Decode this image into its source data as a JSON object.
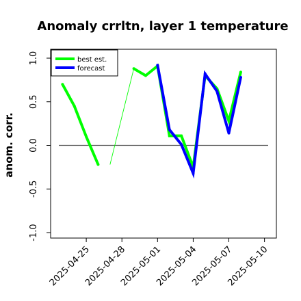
{
  "chart_data": {
    "type": "line",
    "title": "Anomaly crrltn, layer 1 temperature",
    "xlabel": "",
    "ylabel": "anom. corr.",
    "ylim": [
      -1.0,
      1.0
    ],
    "x_range": [
      "2025-04-22",
      "2025-05-11"
    ],
    "y_ticks": [
      "1.0",
      "0.5",
      "0.0",
      "-0.5",
      "-1.0"
    ],
    "y_tick_values": [
      1.0,
      0.5,
      0.0,
      -0.5,
      -1.0
    ],
    "x_ticks": [
      "2025-04-25",
      "2025-04-28",
      "2025-05-01",
      "2025-05-04",
      "2025-05-07",
      "2025-05-10"
    ],
    "highlight_tick": "2025-05-01",
    "highlight_color": "#228b22",
    "reference_line": 0.0,
    "legend_position": "top-left",
    "legend": [
      "best est.",
      "forecast"
    ],
    "series": [
      {
        "name": "best est.",
        "color": "#00ff00",
        "dates": [
          "2025-04-23",
          "2025-04-24",
          "2025-04-25",
          "2025-04-26",
          "2025-04-27",
          "2025-04-29",
          "2025-04-30",
          "2025-05-01",
          "2025-05-02",
          "2025-05-03",
          "2025-05-04",
          "2025-05-05",
          "2025-05-06",
          "2025-05-07",
          "2025-05-08"
        ],
        "values": [
          0.7,
          0.45,
          0.1,
          -0.22,
          null,
          0.88,
          0.8,
          0.91,
          0.11,
          0.11,
          -0.25,
          0.8,
          0.65,
          0.28,
          0.84
        ]
      },
      {
        "name": "forecast",
        "color": "#0000ff",
        "dates": [
          "2025-05-01",
          "2025-05-02",
          "2025-05-03",
          "2025-05-04",
          "2025-05-05",
          "2025-05-06",
          "2025-05-07",
          "2025-05-08"
        ],
        "values": [
          0.92,
          0.18,
          0.01,
          -0.32,
          0.82,
          0.62,
          0.14,
          0.78
        ]
      }
    ],
    "connector": {
      "color": "#00ff00",
      "dates": [
        "2025-04-27",
        "2025-04-29"
      ],
      "values": [
        -0.22,
        0.88
      ]
    }
  }
}
